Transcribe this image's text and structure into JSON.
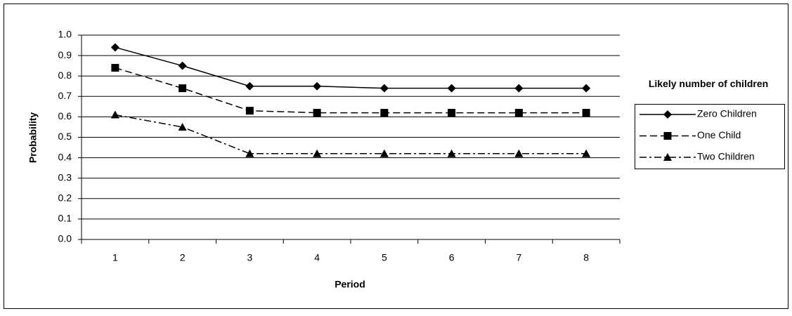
{
  "chart_data": {
    "type": "line",
    "x_label": "Period",
    "y_label": "Probability",
    "legend_title": "Likely number of children",
    "legend": "right",
    "categories": [
      "1",
      "2",
      "3",
      "4",
      "5",
      "6",
      "7",
      "8"
    ],
    "series": [
      {
        "name": "Zero Children",
        "color": "#000000",
        "dash": "solid",
        "marker": "diamond",
        "values": [
          0.94,
          0.85,
          0.75,
          0.75,
          0.74,
          0.74,
          0.74,
          0.74
        ]
      },
      {
        "name": "One Child",
        "color": "#000000",
        "dash": "dashed",
        "marker": "square",
        "values": [
          0.84,
          0.74,
          0.63,
          0.62,
          0.62,
          0.62,
          0.62,
          0.62
        ]
      },
      {
        "name": "Two Children",
        "color": "#000000",
        "dash": "dashdot",
        "marker": "triangle",
        "values": [
          0.61,
          0.55,
          0.42,
          0.42,
          0.42,
          0.42,
          0.42,
          0.42
        ]
      }
    ],
    "ylim": [
      0,
      1
    ],
    "yticks": [
      {
        "value": 0,
        "label": "0.0"
      },
      0.1,
      0.2,
      0.3,
      0.4,
      0.5,
      0.6,
      0.7,
      0.8,
      0.9,
      {
        "value": 1,
        "label": "1.0"
      }
    ],
    "grid": true
  }
}
